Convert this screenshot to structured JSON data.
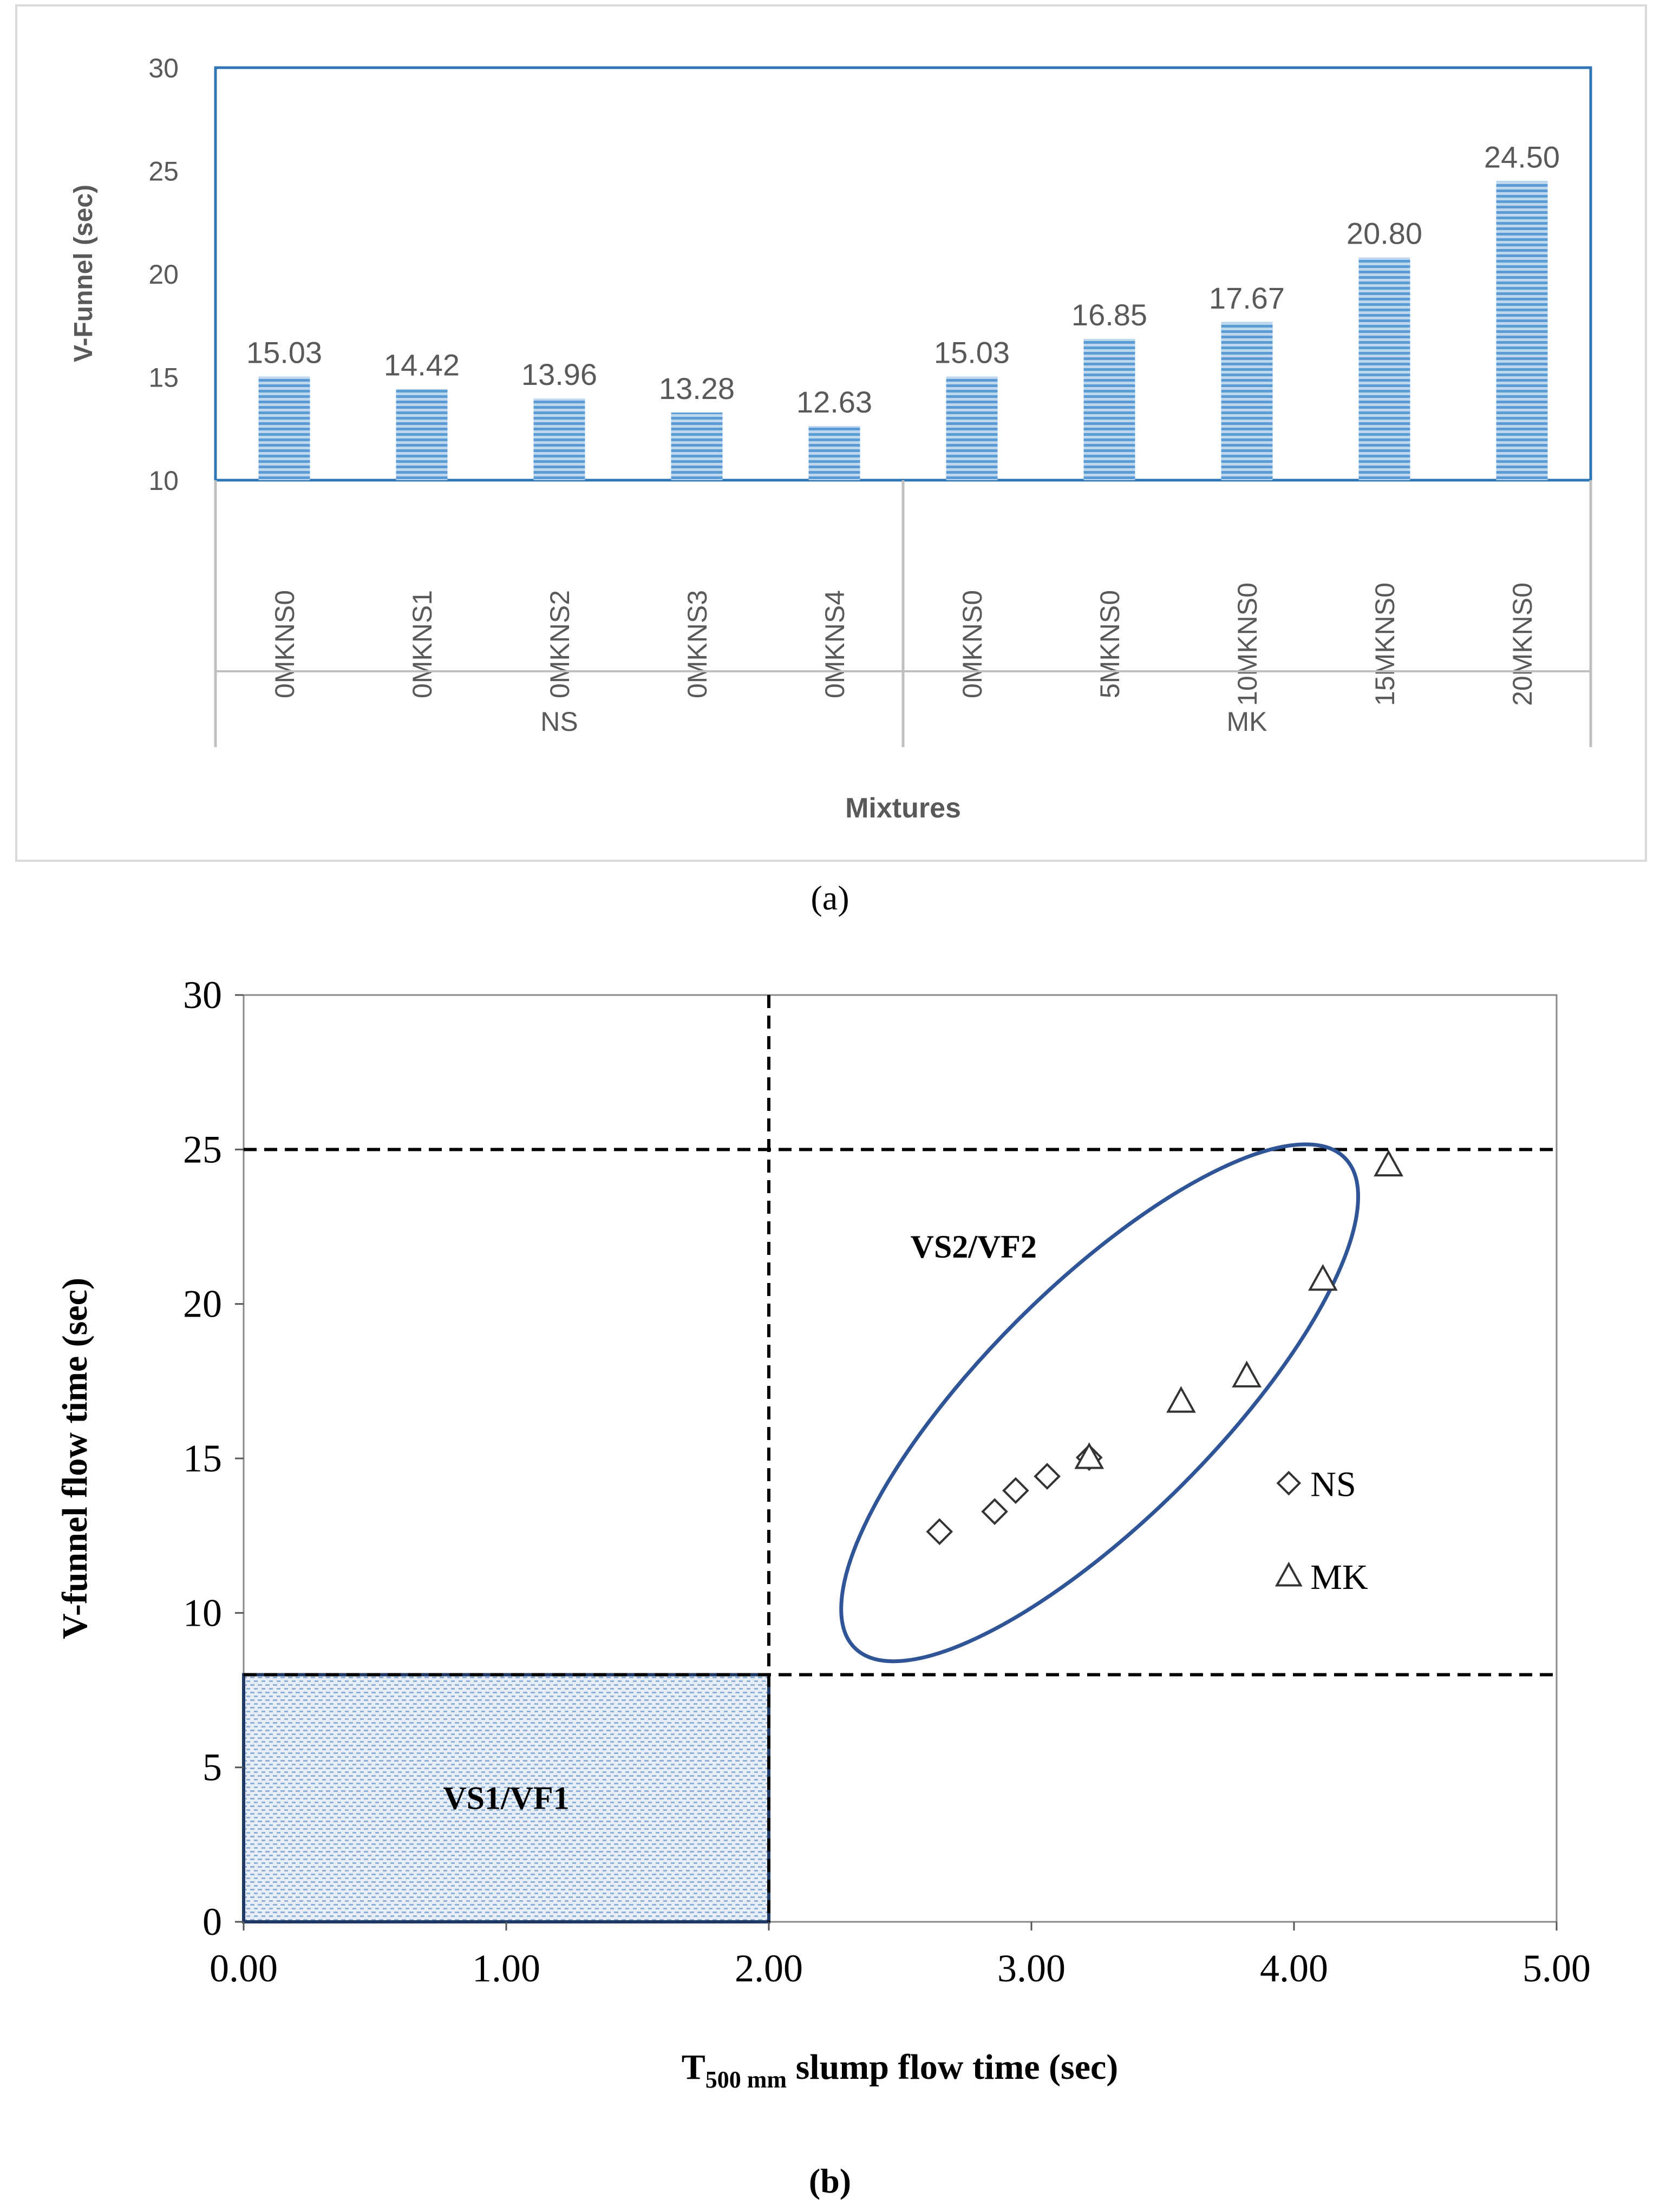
{
  "chart_data": [
    {
      "type": "bar",
      "panel_label": "(a)",
      "title": "",
      "ylabel": "V-Funnel (sec)",
      "xlabel": "Mixtures",
      "ylim": [
        10,
        30
      ],
      "yticks": [
        "10",
        "15",
        "20",
        "25",
        "30"
      ],
      "groups": [
        {
          "name": "NS",
          "categories": [
            "0MKNS0",
            "0MKNS1",
            "0MKNS2",
            "0MKNS3",
            "0MKNS4"
          ]
        },
        {
          "name": "MK",
          "categories": [
            "0MKNS0",
            "5MKNS0",
            "10MKNS0",
            "15MKNS0",
            "20MKNS0"
          ]
        }
      ],
      "values": [
        15.03,
        14.42,
        13.96,
        13.28,
        12.63,
        15.03,
        16.85,
        17.67,
        20.8,
        24.5
      ],
      "labels": [
        "15.03",
        "14.42",
        "13.96",
        "13.28",
        "12.63",
        "15.03",
        "16.85",
        "17.67",
        "20.80",
        "24.50"
      ],
      "bar_color": "#5b9bd5",
      "frame_color": "#2e75b6"
    },
    {
      "type": "scatter",
      "panel_label": "(b)",
      "xlabel_main": "T",
      "xlabel_sub": "500 mm",
      "xlabel_rest": " slump flow time (sec)",
      "ylabel": "V-funnel flow time (sec)",
      "xlim": [
        0,
        5
      ],
      "ylim": [
        0,
        30
      ],
      "xticks": [
        "0.00",
        "1.00",
        "2.00",
        "3.00",
        "4.00",
        "5.00"
      ],
      "yticks": [
        "0",
        "5",
        "10",
        "15",
        "20",
        "25",
        "30"
      ],
      "series": [
        {
          "name": "NS",
          "marker": "diamond",
          "points": [
            [
              2.65,
              12.63
            ],
            [
              2.86,
              13.28
            ],
            [
              2.94,
              13.96
            ],
            [
              3.06,
              14.42
            ],
            [
              3.22,
              15.03
            ]
          ]
        },
        {
          "name": "MK",
          "marker": "triangle",
          "points": [
            [
              3.22,
              15.03
            ],
            [
              3.57,
              16.85
            ],
            [
              3.82,
              17.67
            ],
            [
              4.11,
              20.8
            ],
            [
              4.36,
              24.5
            ]
          ]
        }
      ],
      "legend": {
        "position": "right",
        "entries": [
          "NS",
          "MK"
        ]
      },
      "reference_lines": {
        "x": [
          2.0
        ],
        "y": [
          8,
          25
        ]
      },
      "regions": [
        {
          "label": "VS1/VF1",
          "x_range": [
            0,
            2
          ],
          "y_range": [
            0,
            8
          ]
        },
        {
          "label": "VS2/VF2",
          "note": "ellipse enclosing data"
        }
      ],
      "ellipse_color": "#2f5597"
    }
  ]
}
